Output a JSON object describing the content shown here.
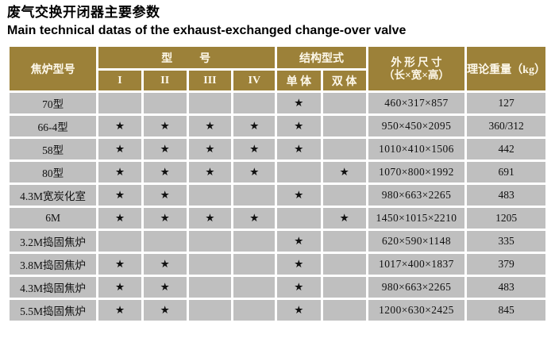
{
  "page": {
    "title_zh": "废气交换开闭器主要参数",
    "title_en": "Main technical datas of the exhaust-exchanged change-over valve"
  },
  "colors": {
    "header_bg": "#9c8139",
    "header_text": "#fdf8ea",
    "cell_bg": "#bfbfbf",
    "gap": "#ffffff",
    "body_text": "#111111"
  },
  "symbols": {
    "star": "★"
  },
  "table": {
    "headers": {
      "oven_model": "焦炉型号",
      "model_group": "型　　号",
      "model_cols": [
        "I",
        "II",
        "III",
        "IV"
      ],
      "structure_group": "结构型式",
      "structure_cols": [
        "单 体",
        "双 体"
      ],
      "dimensions_line1": "外 形 尺 寸",
      "dimensions_line2": "（长×宽×高）",
      "weight": "理论重量（kg）"
    },
    "rows": [
      {
        "model": "70型",
        "types": [
          false,
          false,
          false,
          false
        ],
        "structure": [
          true,
          false
        ],
        "dimensions": "460×317×857",
        "weight": "127"
      },
      {
        "model": "66-4型",
        "types": [
          true,
          true,
          true,
          true
        ],
        "structure": [
          true,
          false
        ],
        "dimensions": "950×450×2095",
        "weight": "360/312"
      },
      {
        "model": "58型",
        "types": [
          true,
          true,
          true,
          true
        ],
        "structure": [
          true,
          false
        ],
        "dimensions": "1010×410×1506",
        "weight": "442"
      },
      {
        "model": "80型",
        "types": [
          true,
          true,
          true,
          true
        ],
        "structure": [
          false,
          true
        ],
        "dimensions": "1070×800×1992",
        "weight": "691"
      },
      {
        "model": "4.3M宽炭化室",
        "types": [
          true,
          true,
          false,
          false
        ],
        "structure": [
          true,
          false
        ],
        "dimensions": "980×663×2265",
        "weight": "483"
      },
      {
        "model": "6M",
        "types": [
          true,
          true,
          true,
          true
        ],
        "structure": [
          false,
          true
        ],
        "dimensions": "1450×1015×2210",
        "weight": "1205"
      },
      {
        "model": "3.2M捣固焦炉",
        "types": [
          false,
          false,
          false,
          false
        ],
        "structure": [
          true,
          false
        ],
        "dimensions": "620×590×1148",
        "weight": "335"
      },
      {
        "model": "3.8M捣固焦炉",
        "types": [
          true,
          true,
          false,
          false
        ],
        "structure": [
          true,
          false
        ],
        "dimensions": "1017×400×1837",
        "weight": "379"
      },
      {
        "model": "4.3M捣固焦炉",
        "types": [
          true,
          true,
          false,
          false
        ],
        "structure": [
          true,
          false
        ],
        "dimensions": "980×663×2265",
        "weight": "483"
      },
      {
        "model": "5.5M捣固焦炉",
        "types": [
          true,
          true,
          false,
          false
        ],
        "structure": [
          true,
          false
        ],
        "dimensions": "1200×630×2425",
        "weight": "845"
      }
    ]
  }
}
